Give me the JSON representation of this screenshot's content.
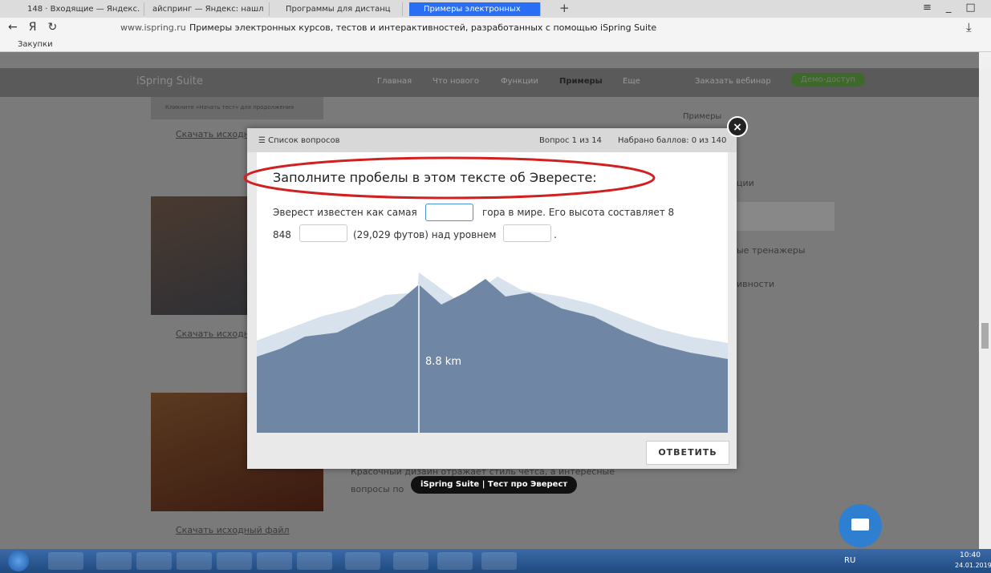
{
  "browser": {
    "tabs": [
      "148 · Входящие — Яндекс.",
      "айспринг — Яндекс: нашл",
      "Программы для дистанц",
      "Примеры электронных"
    ],
    "url": "www.ispring.ru",
    "page_title": "Примеры электронных курсов, тестов и интерактивностей, разработанных с помощью iSpring Suite",
    "bookmarks": [
      "Закупки"
    ]
  },
  "site": {
    "logo": "iSpring Suite",
    "nav": [
      "Главная",
      "Что нового",
      "Функции",
      "Примеры",
      "Еще"
    ],
    "webinar": "Заказать вебинар",
    "demo": "Демо-доступ",
    "start_hint": "Кликните «Начать тест» для продолжения",
    "download": [
      "Скачать исходный файл",
      "Скачать исходный файл",
      "Скачать исходный файл"
    ],
    "side_texts": [
      "Примеры",
      "ции",
      "ые тренажеры",
      "ивности"
    ],
    "description": [
      "Красочный дизайн отражает стиль четса, а интересные",
      "вопросы по"
    ]
  },
  "quiz": {
    "questions_list": "Список вопросов",
    "progress": "Вопрос 1 из 14",
    "score": "Набрано баллов: 0 из 140",
    "question": "Заполните пробелы в этом тексте об Эвересте:",
    "text_parts": [
      "Эверест известен как самая",
      "гора в мире. Его высота составляет 8",
      "848",
      "(29,029 футов) над уровнем",
      "."
    ],
    "height_label": "8.8 km",
    "submit": "ОТВЕТИТЬ"
  },
  "tooltip": "iSpring Suite | Тест про Эверест",
  "taskbar": {
    "language": "RU",
    "time": "10:40",
    "date": "24.01.2019"
  }
}
